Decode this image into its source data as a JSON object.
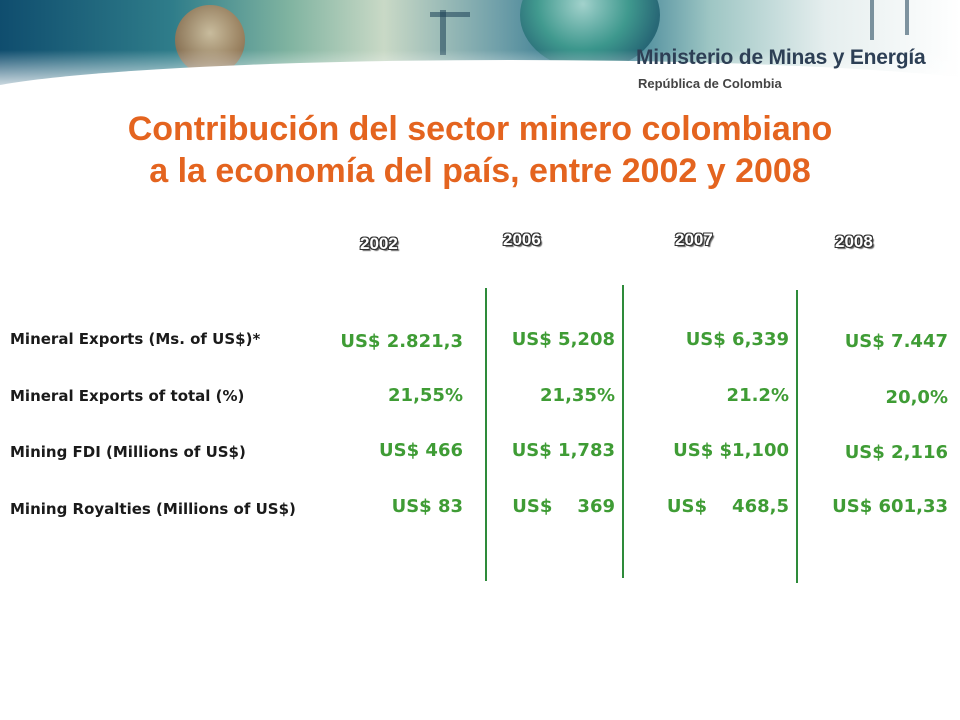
{
  "header": {
    "ministry": "Ministerio de Minas y Energía",
    "country": "República de Colombia"
  },
  "title": {
    "line1": "Contribución del sector minero colombiano",
    "line2": "a la economía del país, entre 2002 y 2008"
  },
  "years": [
    "2002",
    "2006",
    "2007",
    "2008"
  ],
  "rows": [
    {
      "label": "Mineral Exports (Ms. of US$)*",
      "values": [
        "US$ 2.821,3",
        "US$ 5,208",
        "US$ 6,339",
        "US$ 7.447"
      ]
    },
    {
      "label": "Mineral Exports of total (%)",
      "values": [
        "21,55%",
        "21,35%",
        "21.2%",
        "20,0%"
      ]
    },
    {
      "label": "Mining FDI (Millions of US$)",
      "values": [
        "US$ 466",
        "US$ 1,783",
        "US$ $1,100",
        "US$ 2,116"
      ]
    },
    {
      "label": "Mining Royalties (Millions of US$)",
      "values": [
        "US$ 83",
        "US$    369",
        "US$    468,5",
        "US$ 601,33"
      ]
    }
  ],
  "colors": {
    "title": "#e4641f",
    "values": "#3f9c35",
    "divider": "#2e8b3a"
  }
}
